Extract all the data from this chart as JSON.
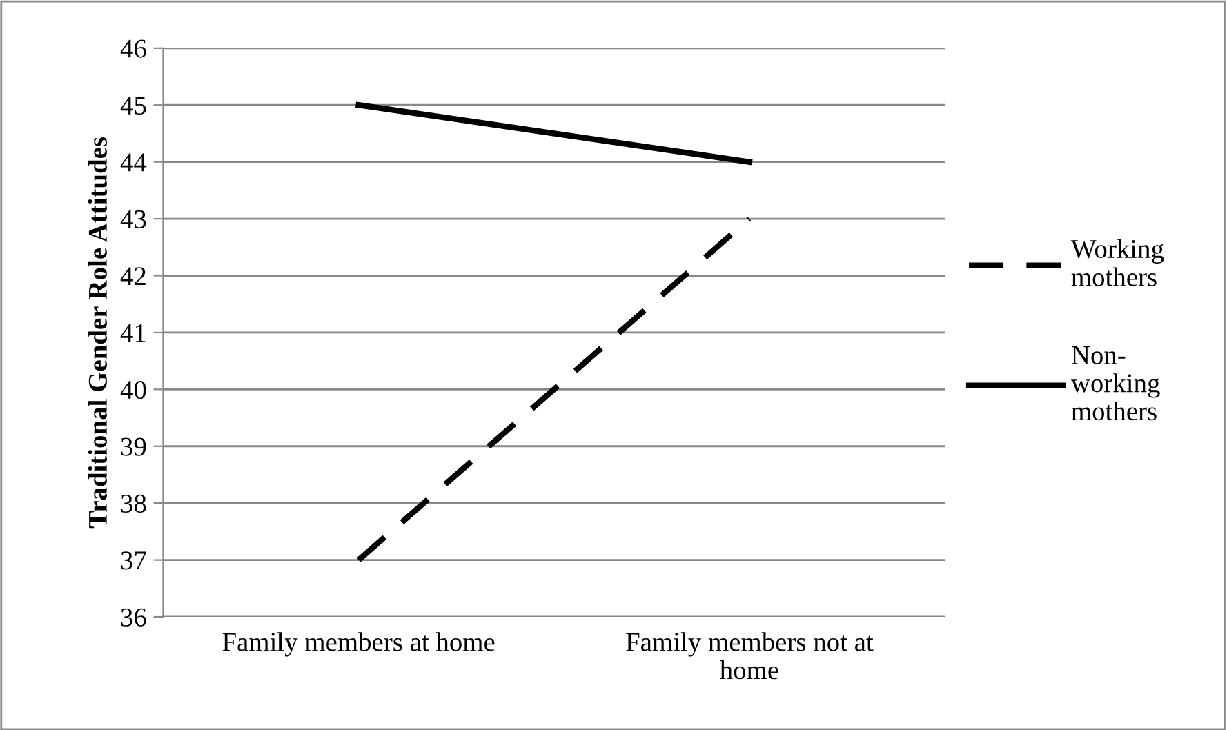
{
  "chart_data": {
    "type": "line",
    "ylabel": "Traditional Gender Role Attitudes",
    "categories": [
      "Family members at home",
      "Family members not at home"
    ],
    "series": [
      {
        "name": "Working mothers",
        "color": "#000000",
        "values": [
          37,
          43
        ],
        "line_style": "dashed"
      },
      {
        "name": "Non-working mothers",
        "color": "#000000",
        "values": [
          45,
          44
        ],
        "line_style": "solid"
      }
    ],
    "ylim": [
      36,
      46
    ],
    "yticks": [
      36,
      37,
      38,
      39,
      40,
      41,
      42,
      43,
      44,
      45,
      46
    ],
    "grid": "y",
    "legend": "right",
    "marker": "none"
  }
}
